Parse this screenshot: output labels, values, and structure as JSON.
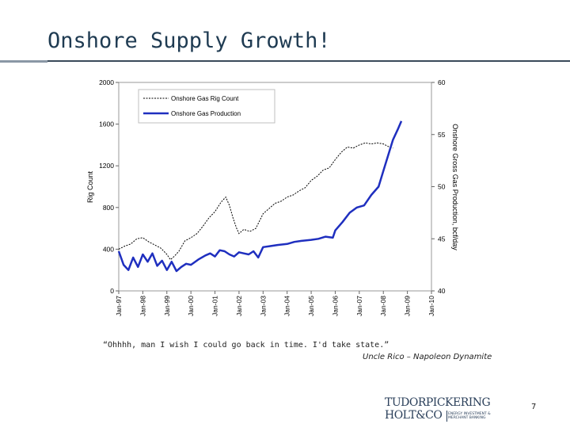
{
  "slide": {
    "title": "Onshore Supply Growth!",
    "quote": "“Ohhhh, man I wish I could go back in time. I'd take state.”",
    "attribution": "Uncle Rico – Napoleon Dynamite",
    "page_number": "7",
    "logo": {
      "line1": "TUDORPICKERING",
      "line2": "HOLT&CO",
      "tagline": "ENERGY INVESTMENT & MERCHANT BANKING"
    }
  },
  "colors": {
    "title": "#1f3b52",
    "rig_line": "#000000",
    "production_line": "#1f2fbf"
  },
  "chart_data": {
    "type": "line",
    "xlabel": "",
    "ylabel": "Rig Count",
    "y2label": "Onshore Gross Gas Production, bcf/day",
    "ylim": [
      0,
      2000
    ],
    "y2lim": [
      40,
      60
    ],
    "yticks": [
      "0",
      "400",
      "800",
      "1200",
      "1600",
      "2000"
    ],
    "y2ticks": [
      "40",
      "45",
      "50",
      "55",
      "60"
    ],
    "xlim": [
      1997.0,
      2010.0
    ],
    "xticks": [
      "Jan-97",
      "Jan-98",
      "Jan-99",
      "Jan-00",
      "Jan-01",
      "Jan-02",
      "Jan-03",
      "Jan-04",
      "Jan-05",
      "Jan-06",
      "Jan-07",
      "Jan-08",
      "Jan-09",
      "Jan-10"
    ],
    "legend_position": "top-left",
    "series": [
      {
        "name": "Onshore Gas Rig Count",
        "axis": "left",
        "style": "dashed",
        "x": [
          1997.0,
          1997.25,
          1997.5,
          1997.75,
          1998.0,
          1998.25,
          1998.5,
          1998.75,
          1999.0,
          1999.15,
          1999.3,
          1999.5,
          1999.75,
          2000.0,
          2000.25,
          2000.5,
          2000.75,
          2001.0,
          2001.25,
          2001.45,
          2001.6,
          2001.75,
          2001.9,
          2002.0,
          2002.2,
          2002.45,
          2002.7,
          2003.0,
          2003.25,
          2003.5,
          2003.75,
          2004.0,
          2004.25,
          2004.5,
          2004.75,
          2005.0,
          2005.25,
          2005.5,
          2005.75,
          2006.0,
          2006.25,
          2006.5,
          2006.75,
          2007.0,
          2007.25,
          2007.5,
          2007.75,
          2008.0,
          2008.25,
          2008.4
        ],
        "values": [
          400,
          430,
          450,
          500,
          510,
          470,
          440,
          410,
          350,
          300,
          330,
          380,
          480,
          510,
          550,
          620,
          700,
          760,
          850,
          900,
          820,
          700,
          600,
          550,
          590,
          570,
          600,
          740,
          790,
          840,
          860,
          900,
          920,
          960,
          990,
          1060,
          1100,
          1160,
          1180,
          1260,
          1330,
          1380,
          1370,
          1400,
          1420,
          1410,
          1420,
          1410,
          1380,
          1370
        ]
      },
      {
        "name": "Onshore Gas Production",
        "axis": "right",
        "style": "solid",
        "x": [
          1997.0,
          1997.2,
          1997.4,
          1997.6,
          1997.8,
          1998.0,
          1998.2,
          1998.4,
          1998.6,
          1998.8,
          1999.0,
          1999.2,
          1999.4,
          1999.6,
          1999.8,
          2000.0,
          2000.3,
          2000.6,
          2000.8,
          2001.0,
          2001.2,
          2001.4,
          2001.6,
          2001.8,
          2002.0,
          2002.2,
          2002.4,
          2002.6,
          2002.8,
          2003.0,
          2003.3,
          2003.6,
          2004.0,
          2004.3,
          2004.6,
          2005.0,
          2005.3,
          2005.6,
          2005.9,
          2006.0,
          2006.3,
          2006.6,
          2006.9,
          2007.2,
          2007.5,
          2007.8,
          2008.0,
          2008.2,
          2008.4,
          2008.6,
          2008.75
        ],
        "values": [
          43.8,
          42.5,
          42.0,
          43.2,
          42.3,
          43.5,
          42.8,
          43.6,
          42.4,
          42.9,
          42.0,
          42.8,
          41.9,
          42.3,
          42.6,
          42.5,
          43.0,
          43.4,
          43.6,
          43.3,
          43.9,
          43.8,
          43.5,
          43.3,
          43.7,
          43.6,
          43.5,
          43.8,
          43.2,
          44.2,
          44.3,
          44.4,
          44.5,
          44.7,
          44.8,
          44.9,
          45.0,
          45.2,
          45.1,
          45.8,
          46.6,
          47.5,
          48.0,
          48.2,
          49.2,
          50.0,
          51.5,
          53.0,
          54.5,
          55.5,
          56.3
        ]
      }
    ]
  }
}
